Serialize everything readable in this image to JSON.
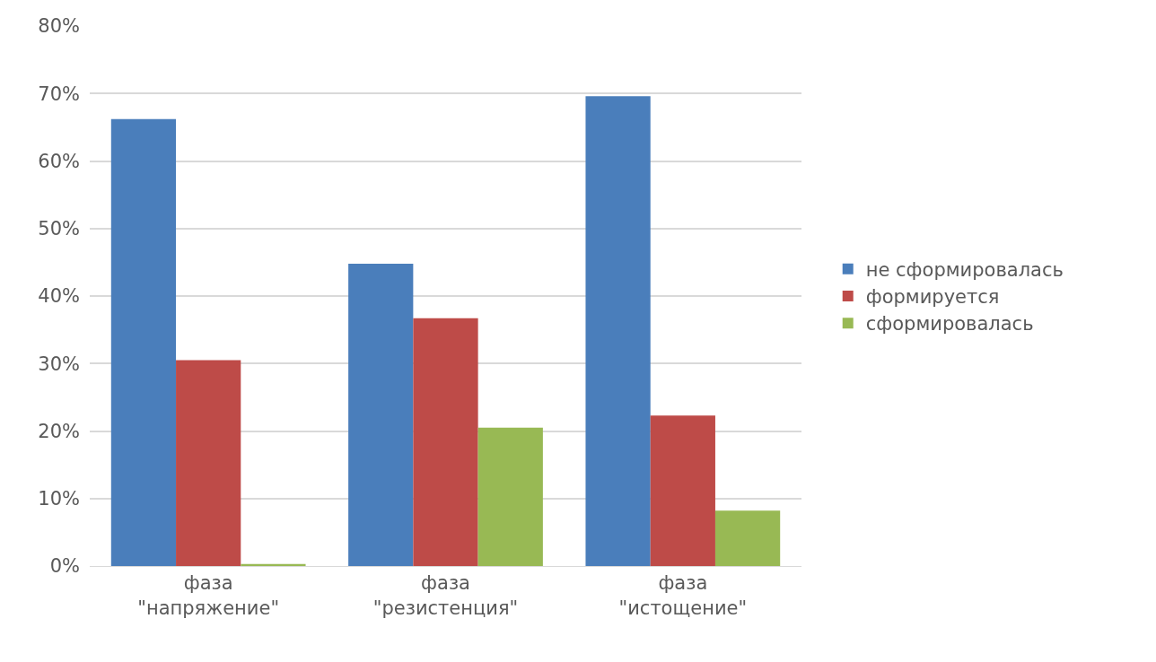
{
  "chart_data": {
    "type": "bar",
    "categories": [
      "фаза\n\"напряжение\"",
      "фаза\n\"резистенция\"",
      "фаза\n\"истощение\""
    ],
    "series": [
      {
        "name": "не сформировалась",
        "color": "#4a7ebb",
        "values": [
          66.2,
          44.8,
          69.6
        ]
      },
      {
        "name": "формируется",
        "color": "#be4b48",
        "values": [
          30.5,
          36.7,
          22.3
        ]
      },
      {
        "name": "сформировалась",
        "color": "#98b954",
        "values": [
          0.3,
          20.5,
          8.2
        ]
      }
    ],
    "ylim": [
      0,
      80
    ],
    "yticks": [
      {
        "value": 0,
        "label": "0%"
      },
      {
        "value": 10,
        "label": "10%"
      },
      {
        "value": 20,
        "label": "20%"
      },
      {
        "value": 30,
        "label": "30%"
      },
      {
        "value": 40,
        "label": "40%"
      },
      {
        "value": 50,
        "label": "50%"
      },
      {
        "value": 60,
        "label": "60%"
      },
      {
        "value": 70,
        "label": "70%"
      },
      {
        "value": 80,
        "label": "80%"
      }
    ],
    "grid": "y",
    "legend": "right"
  }
}
